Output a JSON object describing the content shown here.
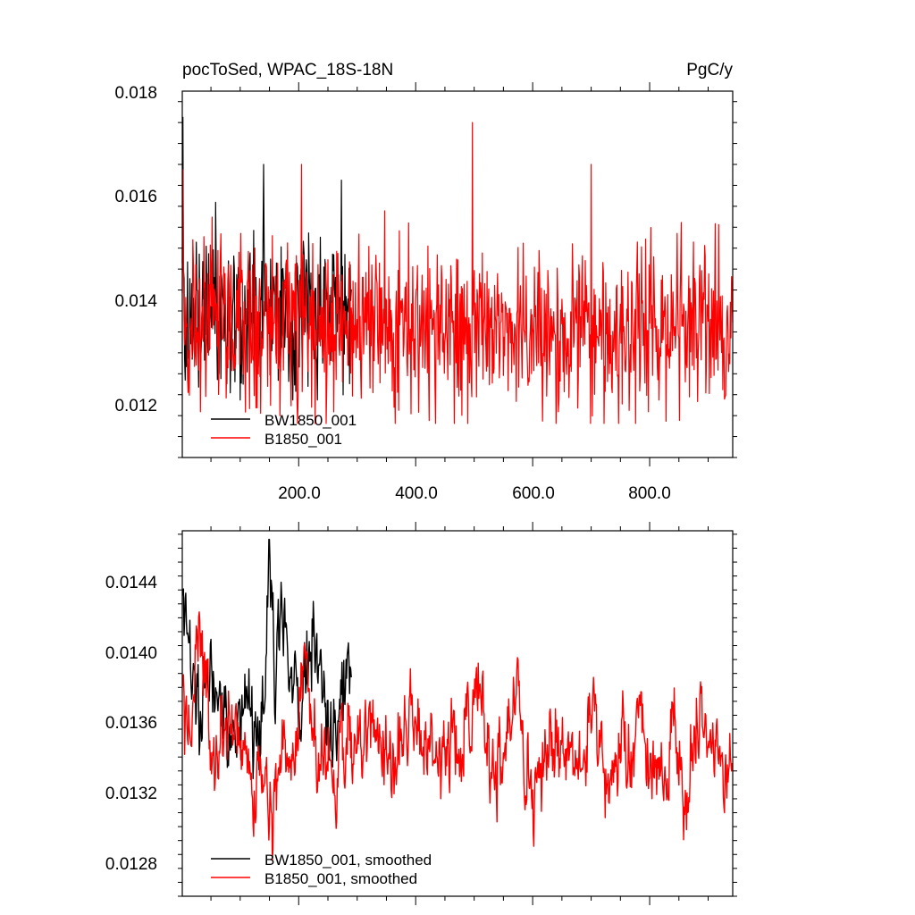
{
  "chart_data": [
    {
      "type": "line",
      "title_left": "pocToSed, WPAC_18S-18N",
      "title_right": "PgC/y",
      "xlabel": "",
      "ylabel": "",
      "xlim": [
        1,
        942
      ],
      "ylim": [
        0.011,
        0.018
      ],
      "xticks": [
        200,
        400,
        600,
        800
      ],
      "xtick_labels": [
        "200.0",
        "400.0",
        "600.0",
        "800.0"
      ],
      "yticks": [
        0.012,
        0.014,
        0.016,
        0.018
      ],
      "ytick_labels": [
        "0.012",
        "0.014",
        "0.016",
        "0.018"
      ],
      "legend_position": "bottom-left",
      "series": [
        {
          "name": "BW1850_001",
          "color": "#000000",
          "x_start": 1,
          "x_end": 290,
          "mean": 0.0138,
          "approx_range": [
            0.0119,
            0.0175
          ],
          "peaks": [
            [
              2,
              0.0175
            ],
            [
              140,
              0.0166
            ],
            [
              273,
              0.0163
            ]
          ]
        },
        {
          "name": "B1850_001",
          "color": "#ff0000",
          "x_start": 1,
          "x_end": 942,
          "mean": 0.0135,
          "approx_range": [
            0.01145,
            0.0174
          ],
          "peaks": [
            [
              2,
              0.0165
            ],
            [
              205,
              0.0166
            ],
            [
              497,
              0.0174
            ],
            [
              700,
              0.0166
            ]
          ]
        }
      ]
    },
    {
      "type": "line",
      "xlabel": "",
      "ylabel": "",
      "xlim": [
        1,
        942
      ],
      "ylim": [
        0.0126,
        0.0147
      ],
      "yticks": [
        0.0128,
        0.0132,
        0.0136,
        0.014,
        0.0144
      ],
      "ytick_labels": [
        "0.0128",
        "0.0132",
        "0.0136",
        "0.0140",
        "0.0144"
      ],
      "legend_position": "bottom-left",
      "series": [
        {
          "name": "BW1850_001, smoothed",
          "color": "#000000",
          "anchors_x": [
            2,
            15,
            30,
            45,
            60,
            75,
            90,
            105,
            120,
            135,
            145,
            150,
            160,
            170,
            185,
            200,
            210,
            225,
            240,
            255,
            265,
            275,
            285,
            290
          ],
          "anchors_y": [
            0.01435,
            0.0139,
            0.0137,
            0.0139,
            0.0138,
            0.01365,
            0.0135,
            0.01375,
            0.0136,
            0.01345,
            0.0141,
            0.0146,
            0.01395,
            0.0142,
            0.0138,
            0.0137,
            0.01385,
            0.0141,
            0.0139,
            0.0134,
            0.0135,
            0.0137,
            0.0141,
            0.0138
          ]
        },
        {
          "name": "B1850_001, smoothed",
          "color": "#ff0000",
          "anchors_x": [
            2,
            10,
            20,
            30,
            40,
            50,
            60,
            70,
            80,
            100,
            120,
            140,
            150,
            155,
            160,
            175,
            195,
            205,
            215,
            230,
            250,
            265,
            280,
            300,
            330,
            360,
            390,
            420,
            450,
            480,
            505,
            520,
            535,
            550,
            575,
            590,
            605,
            625,
            650,
            670,
            690,
            700,
            710,
            730,
            750,
            770,
            780,
            795,
            810,
            825,
            840,
            860,
            880,
            900,
            910,
            920,
            935,
            942
          ],
          "anchors_y": [
            0.0139,
            0.0134,
            0.0138,
            0.0142,
            0.0138,
            0.0135,
            0.0133,
            0.0137,
            0.0136,
            0.0135,
            0.0133,
            0.0134,
            0.0132,
            0.01295,
            0.0132,
            0.0134,
            0.01345,
            0.0138,
            0.0139,
            0.0134,
            0.0135,
            0.0132,
            0.0136,
            0.0134,
            0.0136,
            0.0133,
            0.0137,
            0.0135,
            0.0134,
            0.0135,
            0.0138,
            0.0135,
            0.0133,
            0.0135,
            0.0139,
            0.0131,
            0.0133,
            0.0134,
            0.0134,
            0.0133,
            0.0134,
            0.0138,
            0.0135,
            0.0133,
            0.0135,
            0.01335,
            0.0138,
            0.0134,
            0.0134,
            0.0133,
            0.0135,
            0.0131,
            0.0136,
            0.0135,
            0.0136,
            0.0133,
            0.0132,
            0.0134
          ]
        }
      ]
    }
  ]
}
